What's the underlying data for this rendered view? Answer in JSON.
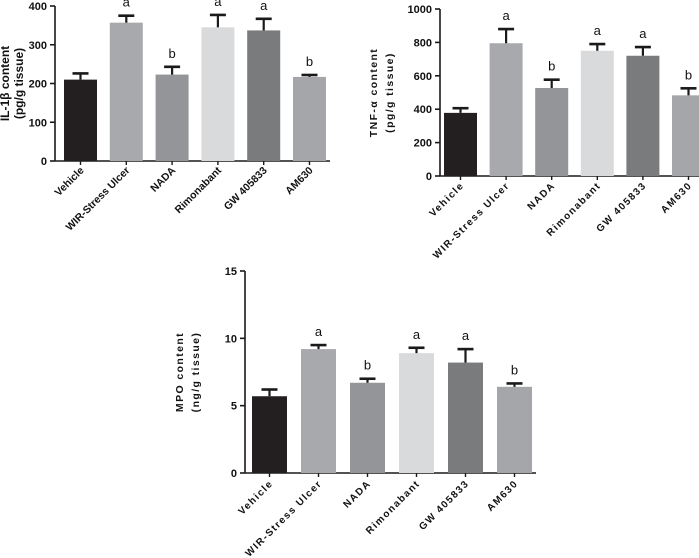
{
  "colors": {
    "bar_fills": [
      "#231f20",
      "#a7a9ac",
      "#939598",
      "#d9dadb",
      "#7a7b7d",
      "#a4a6a9"
    ],
    "axis": "#1a1a1a",
    "error_bar": "#1a1a1a"
  },
  "chart_data": [
    {
      "type": "bar",
      "ylabel_line1": "IL-1β content",
      "ylabel_line2": "(pg/g tissue)",
      "categories": [
        "Vehicle",
        "WIR-Stress Ulcer",
        "NADA",
        "Rimonabant",
        "GW 405833",
        "AM630"
      ],
      "values": [
        210,
        357,
        223,
        345,
        337,
        217
      ],
      "errors": [
        16,
        18,
        20,
        32,
        30,
        5
      ],
      "annotations": [
        "",
        "a",
        "b",
        "a",
        "a",
        "b"
      ],
      "ylim": [
        0,
        400
      ],
      "yticks": [
        0,
        100,
        200,
        300,
        400
      ],
      "grid": false
    },
    {
      "type": "bar",
      "ylabel_line1": "TNF-α content",
      "ylabel_line2": "(pg/g tissue)",
      "categories": [
        "Vehicle",
        "WIR-Stress Ulcer",
        "NADA",
        "Rimonabant",
        "GW 405833",
        "AM630"
      ],
      "values": [
        378,
        795,
        527,
        750,
        720,
        483
      ],
      "errors": [
        28,
        85,
        50,
        40,
        52,
        42
      ],
      "annotations": [
        "",
        "a",
        "b",
        "a",
        "a",
        "b"
      ],
      "ylim": [
        0,
        1000
      ],
      "yticks": [
        0,
        200,
        400,
        600,
        800,
        1000
      ],
      "grid": false
    },
    {
      "type": "bar",
      "ylabel_line1": "MPO content",
      "ylabel_line2": "(ng/g tissue)",
      "categories": [
        "Vehicle",
        "WIR-Stress Ulcer",
        "NADA",
        "Rimonabant",
        "GW 405833",
        "AM630"
      ],
      "values": [
        5.7,
        9.2,
        6.7,
        8.9,
        8.2,
        6.4
      ],
      "errors": [
        0.5,
        0.3,
        0.3,
        0.4,
        1.0,
        0.25
      ],
      "annotations": [
        "",
        "a",
        "b",
        "a",
        "a",
        "b"
      ],
      "ylim": [
        0,
        15
      ],
      "yticks": [
        0,
        5,
        10,
        15
      ],
      "grid": false
    }
  ]
}
